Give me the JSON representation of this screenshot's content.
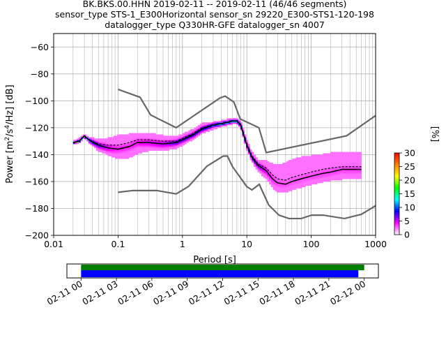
{
  "title_lines": [
    "BK.BKS.00.HHN   2019-02-11 -- 2019-02-11  (46/46 segments)",
    "sensor_type STS-1_E300Horizontal sensor_sn 29220_E300-STS1-120-198",
    "datalogger_type Q330HR-GFE datalogger_sn 4007"
  ],
  "colors": {
    "model_curves": "#666666",
    "mode_line": "#000000",
    "mean_line": "#000000",
    "coverage_bar": "#008000",
    "data_bar": "#0000ff",
    "grid": "#b0b0b0"
  },
  "chart_data": {
    "type": "heatmap",
    "xlabel": "Period [s]",
    "ylabel": "Power [m^2/s^4/Hz] [dB]",
    "xscale": "log",
    "xlim": [
      0.01,
      1000
    ],
    "ylim": [
      -200,
      -50
    ],
    "xticks": [
      0.01,
      0.1,
      1,
      10,
      100,
      1000
    ],
    "xtick_labels": [
      "0.01",
      "0.1",
      "1",
      "10",
      "100",
      "1000"
    ],
    "yticks": [
      -200,
      -180,
      -160,
      -140,
      -120,
      -100,
      -80,
      -60
    ],
    "ytick_labels": [
      "−200",
      "−180",
      "−160",
      "−140",
      "−120",
      "−100",
      "−80",
      "−60"
    ],
    "grid": true,
    "colorbar": {
      "label": "[%]",
      "range": [
        0,
        30
      ],
      "ticks": [
        0,
        5,
        10,
        15,
        20,
        25,
        30
      ],
      "stops": [
        "#ffffff",
        "#ff00ff",
        "#0000ff",
        "#00ffff",
        "#00ff00",
        "#ffff00",
        "#ff8000",
        "#ff0000"
      ]
    },
    "high_noise_model": {
      "x": [
        0.1,
        0.22,
        0.32,
        0.8,
        3.8,
        4.6,
        6.3,
        7.9,
        15.4,
        20,
        354.8,
        1000
      ],
      "y": [
        -91.5,
        -97.4,
        -110.5,
        -120,
        -98,
        -96.5,
        -101,
        -113.5,
        -120,
        -138.5,
        -126,
        -111
      ]
    },
    "low_noise_model": {
      "x": [
        0.1,
        0.17,
        0.4,
        0.8,
        1.24,
        2.4,
        4.3,
        5,
        6,
        10,
        12,
        15.6,
        21.9,
        31.6,
        45,
        70,
        101,
        154,
        328,
        600,
        1000
      ],
      "y": [
        -168,
        -166.7,
        -166.7,
        -169.2,
        -163.7,
        -148.6,
        -141.1,
        -141.1,
        -149,
        -163.8,
        -166.2,
        -162.1,
        -177.5,
        -185,
        -187.5,
        -187.5,
        -185,
        -185,
        -187.5,
        -184.4,
        -178
      ]
    },
    "mode": {
      "x": [
        0.02,
        0.025,
        0.03,
        0.035,
        0.05,
        0.07,
        0.1,
        0.15,
        0.2,
        0.3,
        0.5,
        0.8,
        1,
        1.5,
        2,
        3,
        4,
        5,
        6,
        7,
        8,
        10,
        12,
        15,
        20,
        25,
        30,
        40,
        50,
        70,
        100,
        150,
        200,
        300,
        500,
        600
      ],
      "y": [
        -131,
        -130,
        -126,
        -129,
        -133,
        -135,
        -136,
        -134,
        -131,
        -131,
        -132,
        -131,
        -129,
        -125,
        -121,
        -118,
        -117,
        -116,
        -115,
        -115,
        -118,
        -133,
        -142,
        -148,
        -152,
        -158,
        -161,
        -162,
        -160,
        -158,
        -156,
        -154,
        -153,
        -151,
        -151,
        -151
      ]
    },
    "mean": {
      "x": [
        0.02,
        0.025,
        0.03,
        0.035,
        0.05,
        0.07,
        0.1,
        0.15,
        0.2,
        0.3,
        0.5,
        0.8,
        1,
        1.5,
        2,
        3,
        4,
        5,
        6,
        7,
        8,
        10,
        12,
        15,
        20,
        25,
        30,
        40,
        50,
        70,
        100,
        150,
        200,
        300,
        500,
        600
      ],
      "y": [
        -131,
        -130,
        -126,
        -129,
        -132,
        -133,
        -133,
        -131,
        -129,
        -129,
        -130,
        -130,
        -128,
        -124,
        -120,
        -118,
        -117,
        -116,
        -115,
        -115,
        -117,
        -132,
        -141,
        -147,
        -150,
        -155,
        -158,
        -159,
        -157,
        -155,
        -153,
        -151,
        -150,
        -149,
        -149,
        -149
      ]
    },
    "spread": {
      "x": [
        0.02,
        0.025,
        0.03,
        0.035,
        0.05,
        0.07,
        0.1,
        0.15,
        0.2,
        0.3,
        0.5,
        0.8,
        1,
        1.5,
        2,
        3,
        4,
        5,
        6,
        7,
        8,
        10,
        12,
        15,
        20,
        25,
        30,
        40,
        50,
        70,
        100,
        150,
        200,
        300,
        500,
        600
      ],
      "lo": [
        -132,
        -131,
        -127,
        -131,
        -137,
        -140,
        -143,
        -142,
        -139,
        -137,
        -137,
        -135,
        -133,
        -128,
        -124,
        -121,
        -119,
        -118,
        -117,
        -117,
        -120,
        -136,
        -145,
        -152,
        -158,
        -164,
        -168,
        -168,
        -166,
        -164,
        -162,
        -160,
        -159,
        -158,
        -158,
        -158
      ],
      "hi": [
        -130,
        -128,
        -125,
        -127,
        -129,
        -128,
        -126,
        -125,
        -124,
        -124,
        -126,
        -127,
        -125,
        -121,
        -117,
        -116,
        -115,
        -114,
        -113,
        -113,
        -115,
        -129,
        -138,
        -144,
        -145,
        -147,
        -148,
        -146,
        -144,
        -142,
        -141,
        -140,
        -139,
        -138,
        -138,
        -138
      ]
    },
    "time_axis": {
      "tick_labels": [
        "02-11 00",
        "02-11 03",
        "02-11 06",
        "02-11 09",
        "02-11 12",
        "02-11 15",
        "02-11 18",
        "02-11 21",
        "02-12 00"
      ],
      "tick_hours": [
        0,
        3,
        6,
        9,
        12,
        15,
        18,
        21,
        24
      ],
      "range_hours": [
        -1.2,
        25.2
      ],
      "coverage_hours": [
        0,
        24
      ],
      "data_hours": [
        0,
        23.5
      ]
    }
  }
}
